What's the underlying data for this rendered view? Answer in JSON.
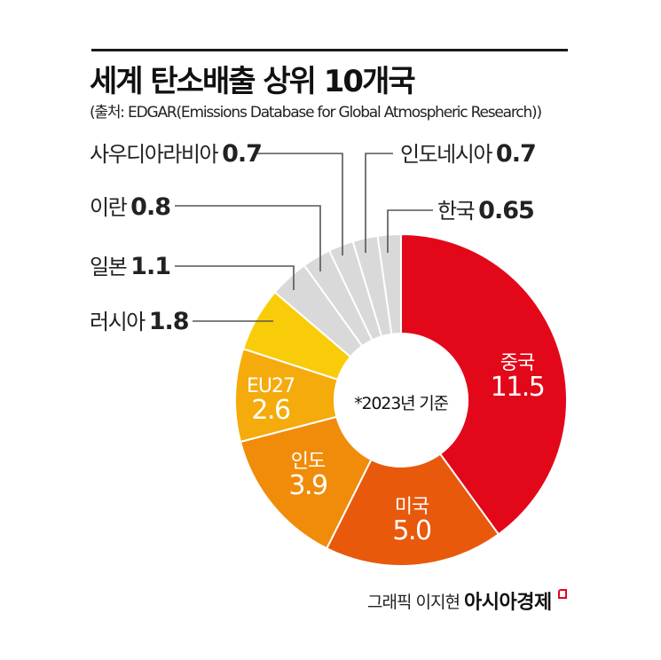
{
  "header": {
    "title": "세계 탄소배출 상위 10개국",
    "subtitle": "(출처: EDGAR(Emissions Database for Global Atmospheric Research))"
  },
  "center_note": "*2023년 기준",
  "footer": {
    "credit": "그래픽 이지현",
    "brand": "아시아경제",
    "brand_color": "#e3071a"
  },
  "colors": {
    "china": "#e3071a",
    "usa": "#e8590c",
    "india": "#f08c0a",
    "eu27": "#f5ab0c",
    "russia": "#f9cc0a",
    "others": "#d9d9d9",
    "leader_line": "#555555"
  },
  "labels": {
    "china": {
      "name": "중국",
      "value": "11.5"
    },
    "usa": {
      "name": "미국",
      "value": "5.0"
    },
    "india": {
      "name": "인도",
      "value": "3.9"
    },
    "eu27": {
      "name": "EU27",
      "value": "2.6"
    },
    "russia": {
      "name": "러시아",
      "value": "1.8"
    },
    "japan": {
      "name": "일본",
      "value": "1.1"
    },
    "iran": {
      "name": "이란",
      "value": "0.8"
    },
    "saudi": {
      "name": "사우디아라비아",
      "value": "0.7"
    },
    "indonesia": {
      "name": "인도네시아",
      "value": "0.7"
    },
    "korea": {
      "name": "한국",
      "value": "0.65"
    }
  },
  "chart_data": {
    "type": "pie",
    "subtype": "donut",
    "title": "세계 탄소배출 상위 10개국",
    "subtitle": "(출처: EDGAR(Emissions Database for Global Atmospheric Research))",
    "annotation": "*2023년 기준",
    "categories": [
      "중국",
      "미국",
      "인도",
      "EU27",
      "러시아",
      "일본",
      "이란",
      "사우디아라비아",
      "인도네시아",
      "한국"
    ],
    "values": [
      11.5,
      5.0,
      3.9,
      2.6,
      1.8,
      1.1,
      0.8,
      0.7,
      0.7,
      0.65
    ],
    "colors": [
      "#e3071a",
      "#e8590c",
      "#f08c0a",
      "#f5ab0c",
      "#f9cc0a",
      "#d9d9d9",
      "#d9d9d9",
      "#d9d9d9",
      "#d9d9d9",
      "#d9d9d9"
    ],
    "start_angle": "12 o'clock",
    "direction": "clockwise",
    "legend": "none (direct labels)"
  }
}
